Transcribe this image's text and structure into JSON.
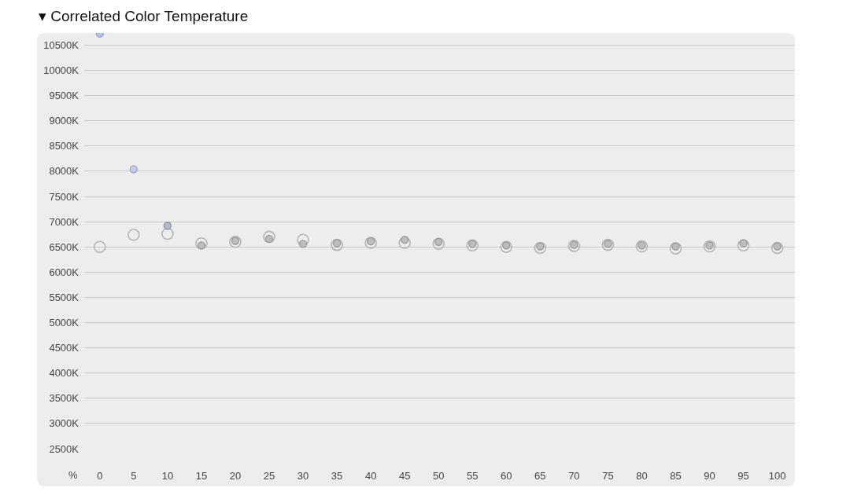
{
  "chart_data": {
    "type": "scatter",
    "title": "▾ Correlated Color Temperature",
    "xlabel": "%",
    "x": [
      0,
      5,
      10,
      15,
      20,
      25,
      30,
      35,
      40,
      45,
      50,
      55,
      60,
      65,
      70,
      75,
      80,
      85,
      90,
      95,
      100
    ],
    "xlim": [
      -2.3,
      102.6
    ],
    "xticks": [
      0,
      5,
      10,
      15,
      20,
      25,
      30,
      35,
      40,
      45,
      50,
      55,
      60,
      65,
      70,
      75,
      80,
      85,
      90,
      95,
      100
    ],
    "ylim": [
      2500,
      10740
    ],
    "yticks": [
      {
        "value": 2500,
        "label": "2500K"
      },
      {
        "value": 3000,
        "label": "3000K"
      },
      {
        "value": 3500,
        "label": "3500K"
      },
      {
        "value": 4000,
        "label": "4000K"
      },
      {
        "value": 4500,
        "label": "4500K"
      },
      {
        "value": 5000,
        "label": "5000K"
      },
      {
        "value": 5500,
        "label": "5500K"
      },
      {
        "value": 6000,
        "label": "6000K"
      },
      {
        "value": 6500,
        "label": "6500K"
      },
      {
        "value": 7000,
        "label": "7000K"
      },
      {
        "value": 7500,
        "label": "7500K"
      },
      {
        "value": 8000,
        "label": "8000K"
      },
      {
        "value": 8500,
        "label": "8500K"
      },
      {
        "value": 9000,
        "label": "9000K"
      },
      {
        "value": 9500,
        "label": "9500K"
      },
      {
        "value": 10000,
        "label": "10000K"
      },
      {
        "value": 10500,
        "label": "10500K"
      }
    ],
    "grid": "y",
    "marker": "circle",
    "series": [
      {
        "color": "#b4b4b4",
        "values": [
          6500,
          6740,
          6760,
          6570,
          6600,
          6700,
          6640,
          6540,
          6580,
          6580,
          6560,
          6530,
          6500,
          6480,
          6520,
          6540,
          6510,
          6470,
          6510,
          6530,
          6480
        ]
      },
      {
        "color": "#bdbdbd",
        "colors": [
          "#b3c6ea",
          "#c6ccef",
          "#b2bac8",
          "#bdbdbd",
          "#bdbdbd",
          "#bdbdbd",
          "#bdbdbd",
          "#bdbdbd",
          "#bdbdbd",
          "#bdbdbd",
          "#bdbdbd",
          "#bdbdbd",
          "#bdbdbd",
          "#bdbdbd",
          "#bdbdbd",
          "#bdbdbd",
          "#bdbdbd",
          "#bdbdbd",
          "#bdbdbd",
          "#bdbdbd",
          "#bdbdbd"
        ],
        "values": [
          10730,
          8040,
          6920,
          6530,
          6620,
          6660,
          6560,
          6570,
          6610,
          6640,
          6600,
          6560,
          6530,
          6510,
          6540,
          6560,
          6530,
          6510,
          6530,
          6570,
          6510
        ]
      }
    ]
  }
}
